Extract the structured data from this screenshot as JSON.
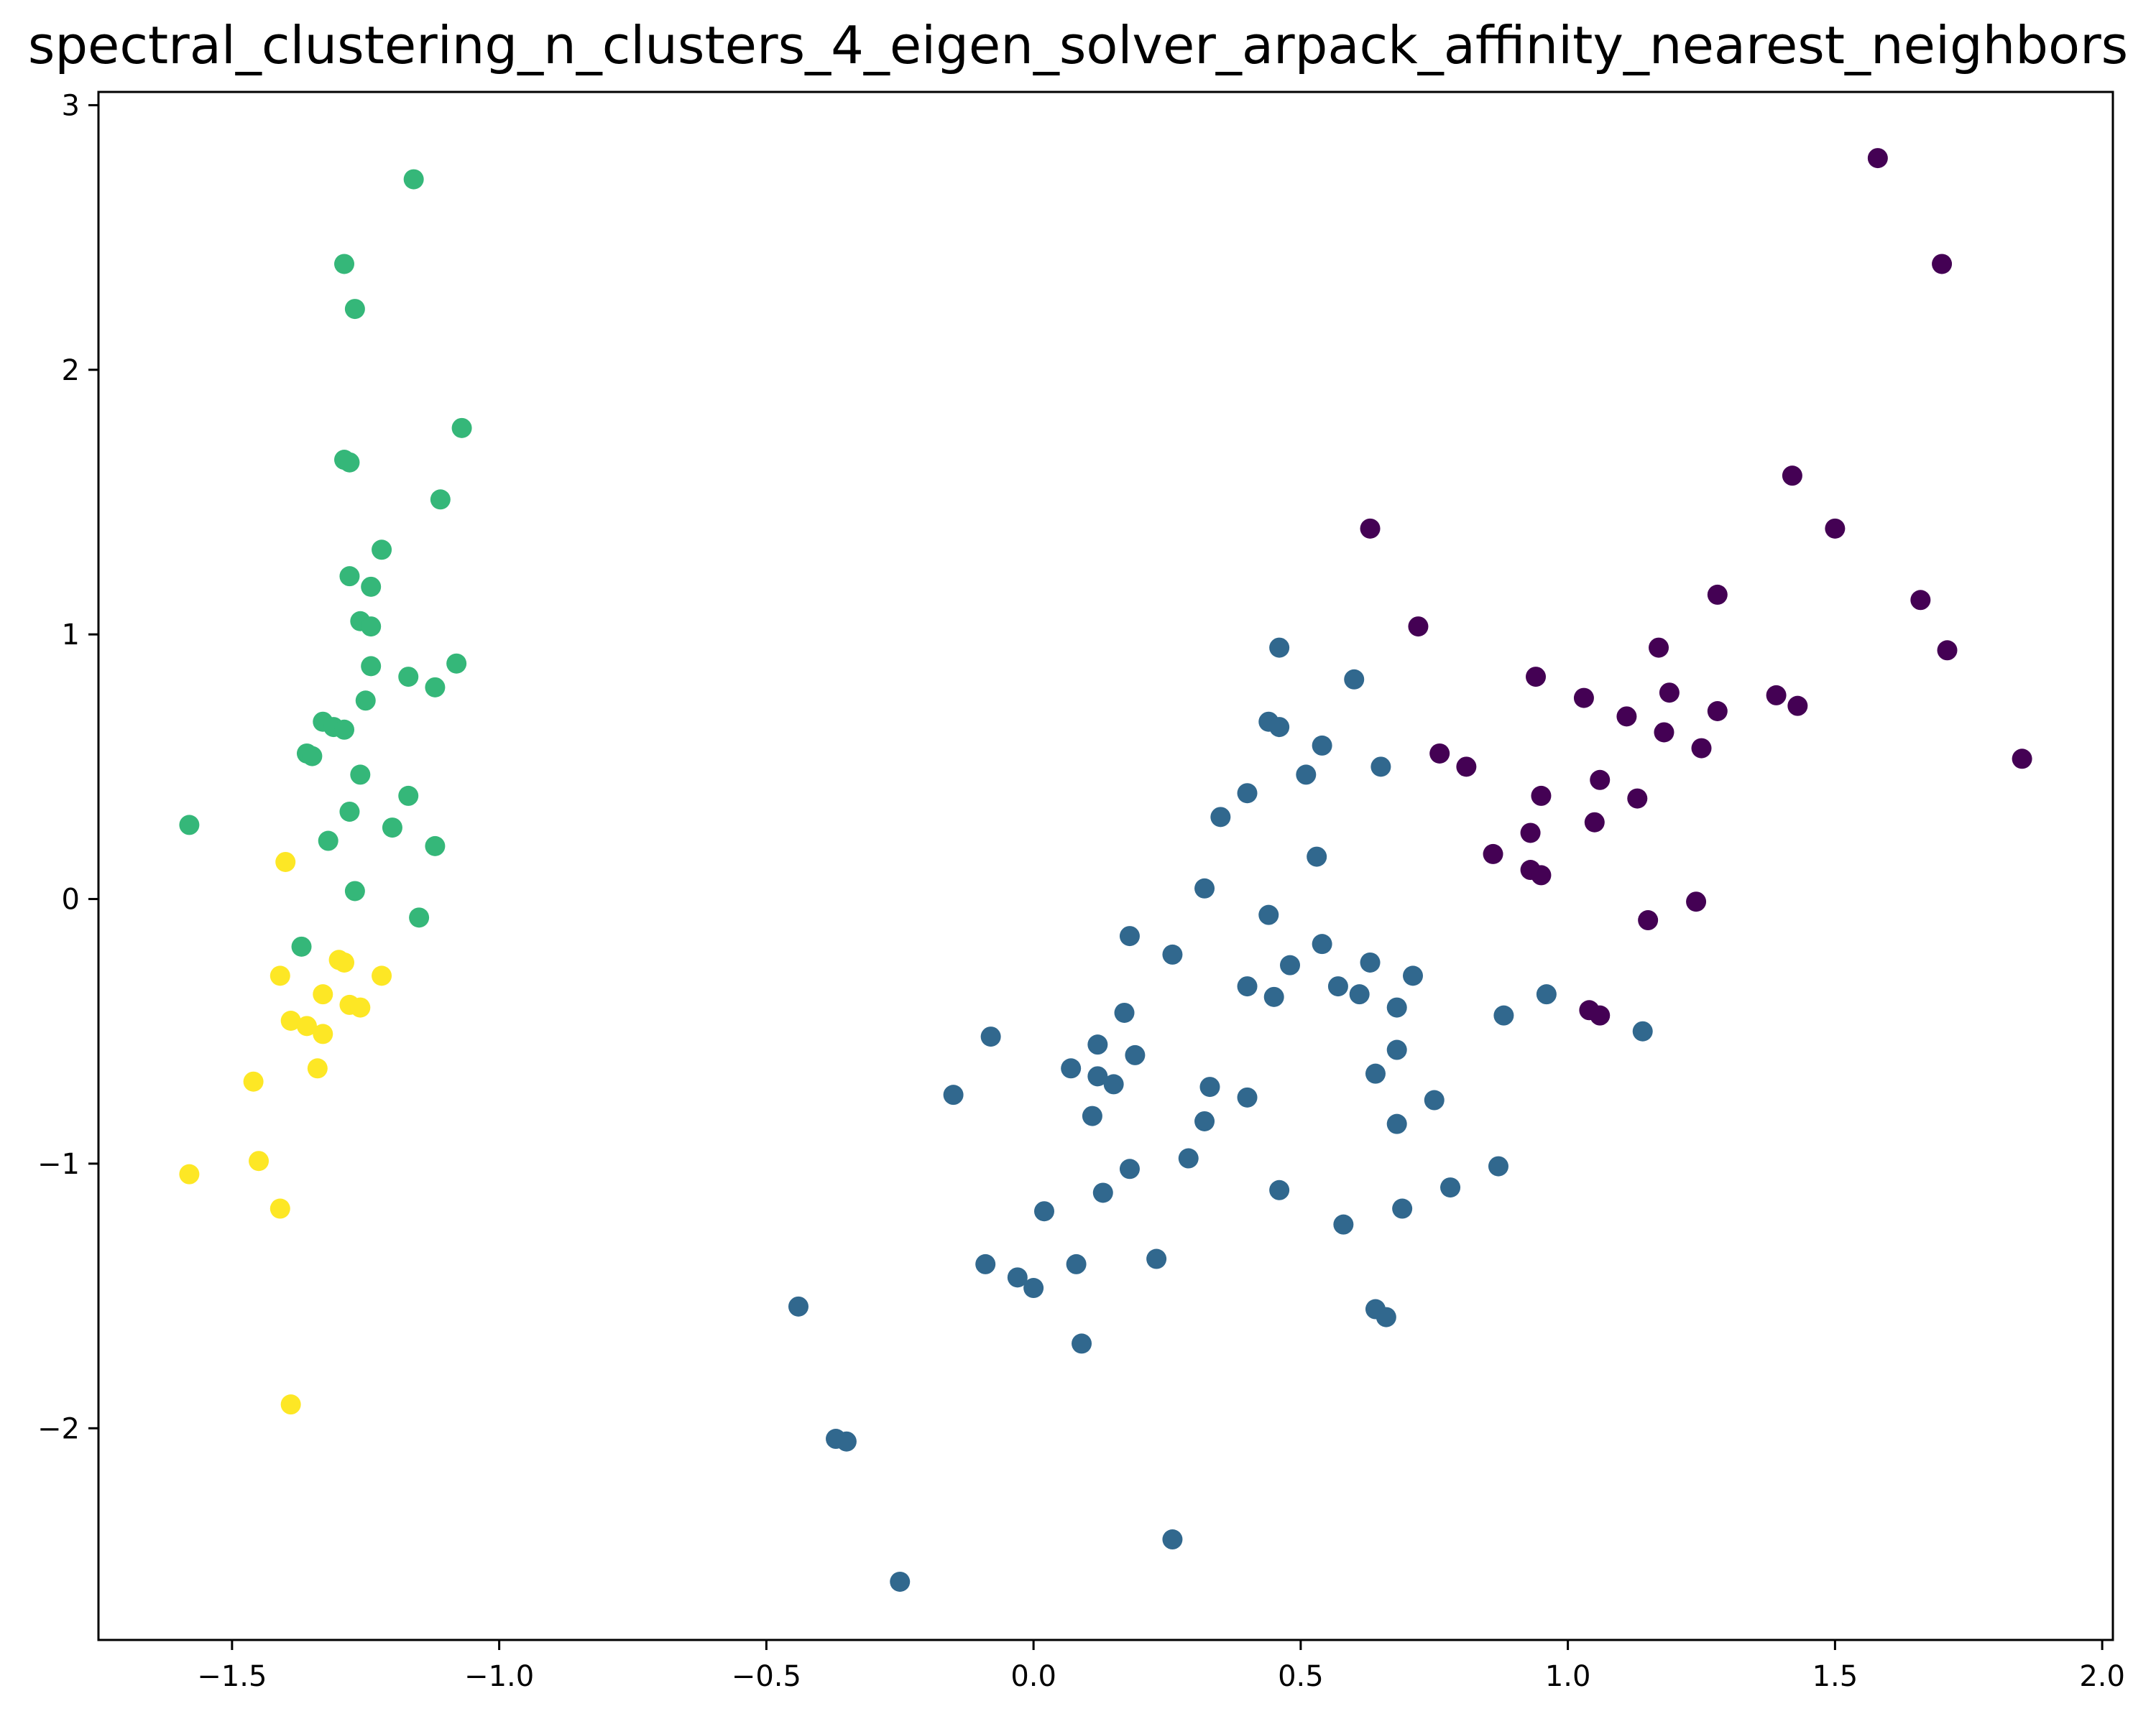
{
  "chart_data": {
    "type": "scatter",
    "title": "spectral_clustering_n_clusters_4_eigen_solver_arpack_affinity_nearest_neighbors",
    "xlabel": "",
    "ylabel": "",
    "xlim": [
      -1.75,
      2.02
    ],
    "ylim": [
      -2.8,
      3.05
    ],
    "x_ticks": [
      -1.5,
      -1.0,
      -0.5,
      0.0,
      0.5,
      1.0,
      1.5,
      2.0
    ],
    "x_tick_labels": [
      "−1.5",
      "−1.0",
      "−0.5",
      "0.0",
      "0.5",
      "1.0",
      "1.5",
      "2.0"
    ],
    "y_ticks": [
      -2,
      -1,
      0,
      1,
      2,
      3
    ],
    "y_tick_labels": [
      "−2",
      "−1",
      "0",
      "1",
      "2",
      "3"
    ],
    "grid": false,
    "legend": "none",
    "colormap": "viridis",
    "series": [
      {
        "color": "#440154",
        "points": [
          [
            1.58,
            2.8
          ],
          [
            1.7,
            2.4
          ],
          [
            1.42,
            1.6
          ],
          [
            1.5,
            1.4
          ],
          [
            0.63,
            1.4
          ],
          [
            1.66,
            1.13
          ],
          [
            1.71,
            0.94
          ],
          [
            1.28,
            1.15
          ],
          [
            0.72,
            1.03
          ],
          [
            1.17,
            0.95
          ],
          [
            0.94,
            0.84
          ],
          [
            1.03,
            0.76
          ],
          [
            1.19,
            0.78
          ],
          [
            1.11,
            0.69
          ],
          [
            1.28,
            0.71
          ],
          [
            1.39,
            0.77
          ],
          [
            1.43,
            0.73
          ],
          [
            1.85,
            0.53
          ],
          [
            1.18,
            0.63
          ],
          [
            1.25,
            0.57
          ],
          [
            0.76,
            0.55
          ],
          [
            0.81,
            0.5
          ],
          [
            1.06,
            0.45
          ],
          [
            0.95,
            0.39
          ],
          [
            1.13,
            0.38
          ],
          [
            1.05,
            0.29
          ],
          [
            0.93,
            0.25
          ],
          [
            0.86,
            0.17
          ],
          [
            0.93,
            0.11
          ],
          [
            0.95,
            0.09
          ],
          [
            1.15,
            -0.08
          ],
          [
            1.24,
            -0.01
          ],
          [
            1.04,
            -0.42
          ],
          [
            1.06,
            -0.44
          ]
        ]
      },
      {
        "color": "#31688e",
        "points": [
          [
            0.46,
            0.95
          ],
          [
            0.6,
            0.83
          ],
          [
            0.44,
            0.67
          ],
          [
            0.46,
            0.65
          ],
          [
            0.54,
            0.58
          ],
          [
            0.65,
            0.5
          ],
          [
            0.51,
            0.47
          ],
          [
            0.4,
            0.4
          ],
          [
            0.35,
            0.31
          ],
          [
            0.53,
            0.16
          ],
          [
            0.32,
            0.04
          ],
          [
            0.44,
            -0.06
          ],
          [
            0.18,
            -0.14
          ],
          [
            0.26,
            -0.21
          ],
          [
            0.54,
            -0.17
          ],
          [
            0.63,
            -0.24
          ],
          [
            0.48,
            -0.25
          ],
          [
            0.71,
            -0.29
          ],
          [
            0.4,
            -0.33
          ],
          [
            0.57,
            -0.33
          ],
          [
            0.45,
            -0.37
          ],
          [
            0.61,
            -0.36
          ],
          [
            0.96,
            -0.36
          ],
          [
            0.68,
            -0.41
          ],
          [
            0.88,
            -0.44
          ],
          [
            1.14,
            -0.5
          ],
          [
            0.17,
            -0.43
          ],
          [
            -0.08,
            -0.52
          ],
          [
            0.12,
            -0.55
          ],
          [
            0.19,
            -0.59
          ],
          [
            0.68,
            -0.57
          ],
          [
            0.07,
            -0.64
          ],
          [
            0.12,
            -0.67
          ],
          [
            0.64,
            -0.66
          ],
          [
            0.15,
            -0.7
          ],
          [
            0.33,
            -0.71
          ],
          [
            -0.15,
            -0.74
          ],
          [
            0.4,
            -0.75
          ],
          [
            0.75,
            -0.76
          ],
          [
            0.11,
            -0.82
          ],
          [
            0.32,
            -0.84
          ],
          [
            0.68,
            -0.85
          ],
          [
            0.29,
            -0.98
          ],
          [
            0.18,
            -1.02
          ],
          [
            0.87,
            -1.01
          ],
          [
            0.13,
            -1.11
          ],
          [
            0.46,
            -1.1
          ],
          [
            0.78,
            -1.09
          ],
          [
            0.69,
            -1.17
          ],
          [
            0.02,
            -1.18
          ],
          [
            0.58,
            -1.23
          ],
          [
            -0.09,
            -1.38
          ],
          [
            0.08,
            -1.38
          ],
          [
            0.23,
            -1.36
          ],
          [
            -0.03,
            -1.43
          ],
          [
            0.0,
            -1.47
          ],
          [
            0.64,
            -1.55
          ],
          [
            0.66,
            -1.58
          ],
          [
            0.09,
            -1.68
          ],
          [
            -0.44,
            -1.54
          ],
          [
            -0.37,
            -2.04
          ],
          [
            -0.35,
            -2.05
          ],
          [
            0.26,
            -2.42
          ],
          [
            -0.25,
            -2.58
          ]
        ]
      },
      {
        "color": "#35b779",
        "points": [
          [
            -1.16,
            2.72
          ],
          [
            -1.29,
            2.4
          ],
          [
            -1.27,
            2.23
          ],
          [
            -1.07,
            1.78
          ],
          [
            -1.29,
            1.66
          ],
          [
            -1.28,
            1.65
          ],
          [
            -1.11,
            1.51
          ],
          [
            -1.22,
            1.32
          ],
          [
            -1.28,
            1.22
          ],
          [
            -1.24,
            1.18
          ],
          [
            -1.26,
            1.05
          ],
          [
            -1.24,
            1.03
          ],
          [
            -1.08,
            0.89
          ],
          [
            -1.24,
            0.88
          ],
          [
            -1.17,
            0.84
          ],
          [
            -1.12,
            0.8
          ],
          [
            -1.25,
            0.75
          ],
          [
            -1.33,
            0.67
          ],
          [
            -1.31,
            0.65
          ],
          [
            -1.29,
            0.64
          ],
          [
            -1.36,
            0.55
          ],
          [
            -1.35,
            0.54
          ],
          [
            -1.26,
            0.47
          ],
          [
            -1.17,
            0.39
          ],
          [
            -1.28,
            0.33
          ],
          [
            -1.2,
            0.27
          ],
          [
            -1.58,
            0.28
          ],
          [
            -1.32,
            0.22
          ],
          [
            -1.12,
            0.2
          ],
          [
            -1.27,
            0.03
          ],
          [
            -1.15,
            -0.07
          ],
          [
            -1.37,
            -0.18
          ]
        ]
      },
      {
        "color": "#fde725",
        "points": [
          [
            -1.4,
            0.14
          ],
          [
            -1.3,
            -0.23
          ],
          [
            -1.29,
            -0.24
          ],
          [
            -1.41,
            -0.29
          ],
          [
            -1.22,
            -0.29
          ],
          [
            -1.33,
            -0.36
          ],
          [
            -1.28,
            -0.4
          ],
          [
            -1.26,
            -0.41
          ],
          [
            -1.39,
            -0.46
          ],
          [
            -1.36,
            -0.48
          ],
          [
            -1.33,
            -0.51
          ],
          [
            -1.34,
            -0.64
          ],
          [
            -1.46,
            -0.69
          ],
          [
            -1.45,
            -0.99
          ],
          [
            -1.58,
            -1.04
          ],
          [
            -1.41,
            -1.17
          ],
          [
            -1.39,
            -1.91
          ]
        ]
      }
    ]
  }
}
